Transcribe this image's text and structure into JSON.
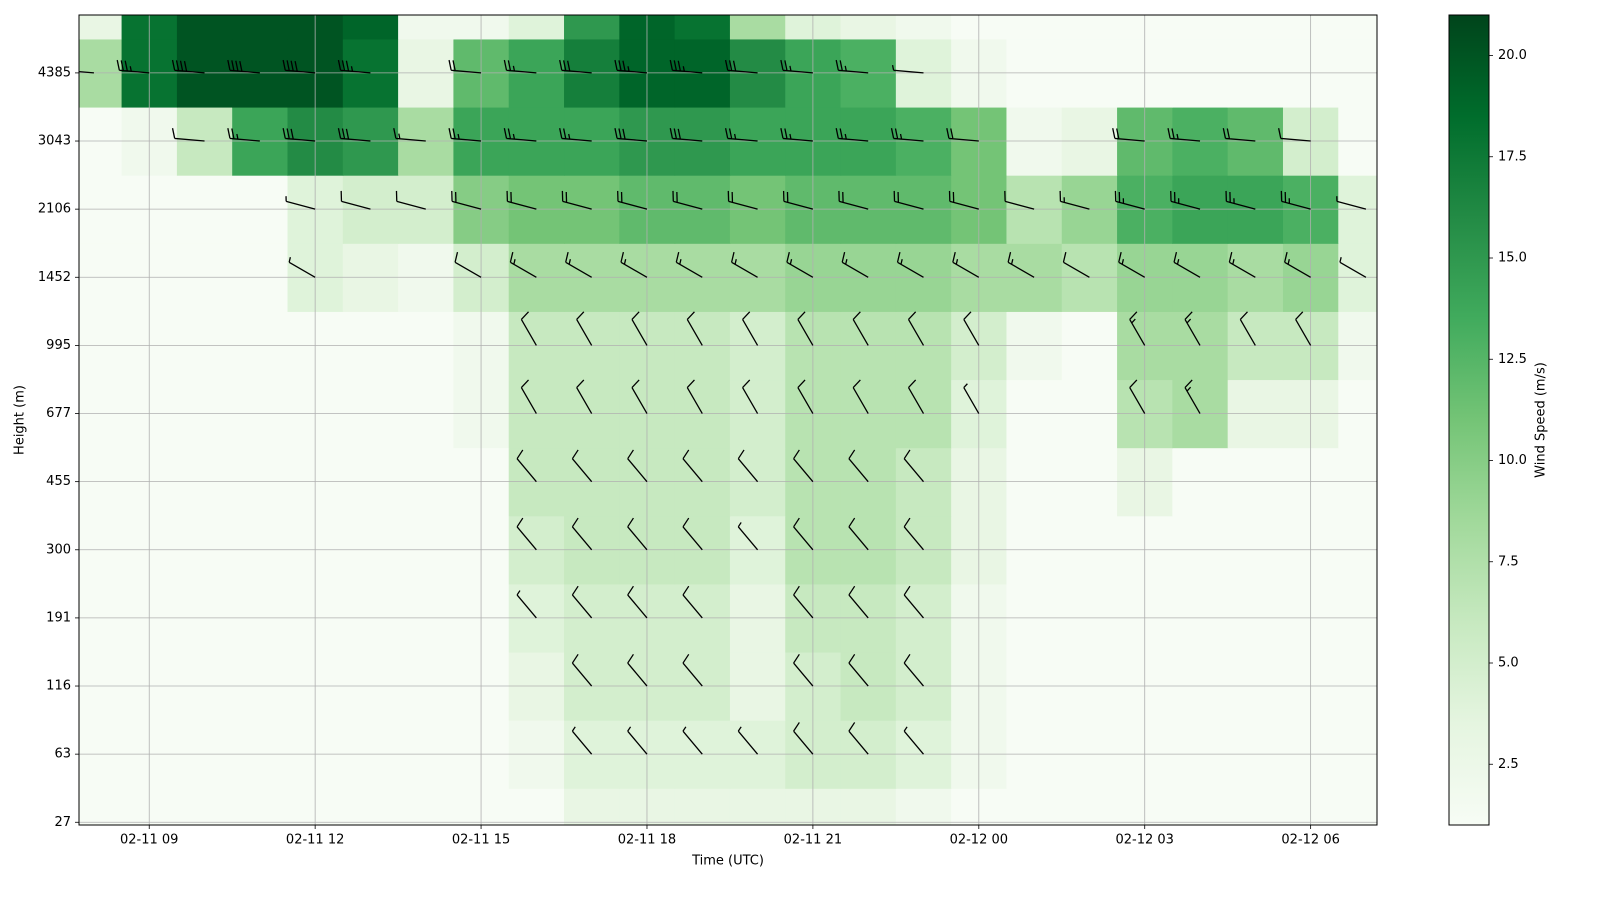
{
  "chart_data": {
    "type": "heatmap",
    "xlabel": "Time (UTC)",
    "ylabel": "Height (m)",
    "zlabel": "Wind Speed (m/s)",
    "colormap": "Greens",
    "grid": true,
    "xlim": [
      7.73,
      31.2
    ],
    "xticks": [
      {
        "value": 9,
        "label": "02-11 09"
      },
      {
        "value": 12,
        "label": "02-11 12"
      },
      {
        "value": 15,
        "label": "02-11 15"
      },
      {
        "value": 18,
        "label": "02-11 18"
      },
      {
        "value": 21,
        "label": "02-11 21"
      },
      {
        "value": 24,
        "label": "02-12 00"
      },
      {
        "value": 27,
        "label": "02-12 03"
      },
      {
        "value": 30,
        "label": "02-12 06"
      }
    ],
    "ylim": [
      -0.04,
      11.85
    ],
    "yticks": [
      {
        "value": 0,
        "label": "27"
      },
      {
        "value": 1,
        "label": "63"
      },
      {
        "value": 2,
        "label": "116"
      },
      {
        "value": 3,
        "label": "191"
      },
      {
        "value": 4,
        "label": "300"
      },
      {
        "value": 5,
        "label": "455"
      },
      {
        "value": 6,
        "label": "677"
      },
      {
        "value": 7,
        "label": "995"
      },
      {
        "value": 8,
        "label": "1452"
      },
      {
        "value": 9,
        "label": "2106"
      },
      {
        "value": 10,
        "label": "3043"
      },
      {
        "value": 11,
        "label": "4385"
      }
    ],
    "zlim": [
      1,
      21
    ],
    "zticks": [
      2.5,
      {
        "value": 5,
        "label": "5.0"
      },
      7.5,
      {
        "value": 10,
        "label": "10.0"
      },
      12.5,
      {
        "value": 15,
        "label": "15.0"
      },
      17.5,
      {
        "value": 20,
        "label": "20.0"
      }
    ],
    "x": [
      8,
      9,
      10,
      11,
      12,
      13,
      14,
      15,
      16,
      17,
      18,
      19,
      20,
      21,
      22,
      23,
      24,
      25,
      26,
      27,
      28,
      29,
      30,
      31
    ],
    "y": [
      0,
      1,
      2,
      3,
      4,
      5,
      6,
      7,
      8,
      9,
      10,
      11,
      12
    ],
    "z": [
      [
        1,
        1,
        1,
        1,
        1,
        1,
        1,
        1,
        1,
        3,
        3,
        3,
        3,
        3,
        3,
        2,
        1,
        1,
        1,
        1,
        1,
        1,
        1,
        1
      ],
      [
        1,
        1,
        1,
        1,
        1,
        1,
        1,
        1,
        2,
        4,
        4,
        4,
        4,
        5,
        5,
        4,
        2,
        1,
        1,
        1,
        1,
        1,
        1,
        1
      ],
      [
        1,
        1,
        1,
        1,
        1,
        1,
        1,
        1,
        3,
        5,
        5,
        5,
        3,
        5,
        6,
        5,
        2,
        1,
        1,
        1,
        1,
        1,
        1,
        1
      ],
      [
        1,
        1,
        1,
        1,
        1,
        1,
        1,
        1,
        4,
        5,
        5,
        5,
        3,
        6,
        6,
        5,
        2,
        1,
        1,
        1,
        1,
        1,
        1,
        1
      ],
      [
        1,
        1,
        1,
        1,
        1,
        1,
        1,
        1,
        5,
        6,
        6,
        6,
        4,
        7,
        7,
        6,
        3,
        1,
        1,
        1,
        1,
        1,
        1,
        1
      ],
      [
        1,
        1,
        1,
        1,
        1,
        1,
        1,
        1,
        6,
        6,
        6,
        6,
        5,
        7,
        7,
        6,
        3,
        1,
        1,
        3,
        1,
        1,
        1,
        1
      ],
      [
        1,
        1,
        1,
        1,
        1,
        1,
        1,
        2,
        6,
        6,
        6,
        6,
        5,
        7,
        7,
        7,
        4,
        1,
        1,
        7,
        8,
        3,
        3,
        1
      ],
      [
        1,
        1,
        1,
        1,
        1,
        1,
        1,
        2,
        6,
        6,
        6,
        6,
        5,
        7,
        7,
        7,
        5,
        2,
        1,
        8,
        8,
        6,
        6,
        2
      ],
      [
        1,
        1,
        1,
        1,
        4,
        3,
        2,
        5,
        8,
        8,
        8,
        8,
        8,
        9,
        9,
        9,
        8,
        8,
        7,
        9,
        9,
        8,
        9,
        4
      ],
      [
        1,
        1,
        1,
        1,
        4,
        5,
        5,
        10,
        11,
        11,
        12,
        12,
        11,
        12,
        12,
        12,
        11,
        7,
        9,
        13,
        14,
        14,
        13,
        4
      ],
      [
        1,
        2,
        6,
        14,
        16,
        15,
        8,
        14,
        14,
        14,
        15,
        15,
        14,
        14,
        14,
        13,
        11,
        2,
        3,
        12,
        13,
        12,
        5,
        1
      ],
      [
        8,
        18,
        20,
        20,
        20,
        18,
        3,
        12,
        14,
        17,
        19,
        19,
        16,
        14,
        13,
        4,
        2,
        1,
        1,
        1,
        1,
        1,
        1,
        1
      ],
      [
        3,
        18,
        20,
        20,
        20,
        19,
        2,
        2,
        4,
        15,
        19,
        18,
        8,
        4,
        3,
        2,
        1,
        1,
        1,
        1,
        1,
        1,
        1,
        1
      ]
    ],
    "barb_direction": [
      320,
      320,
      320,
      320,
      320,
      320,
      330,
      330,
      300,
      285,
      275,
      275,
      275
    ]
  }
}
